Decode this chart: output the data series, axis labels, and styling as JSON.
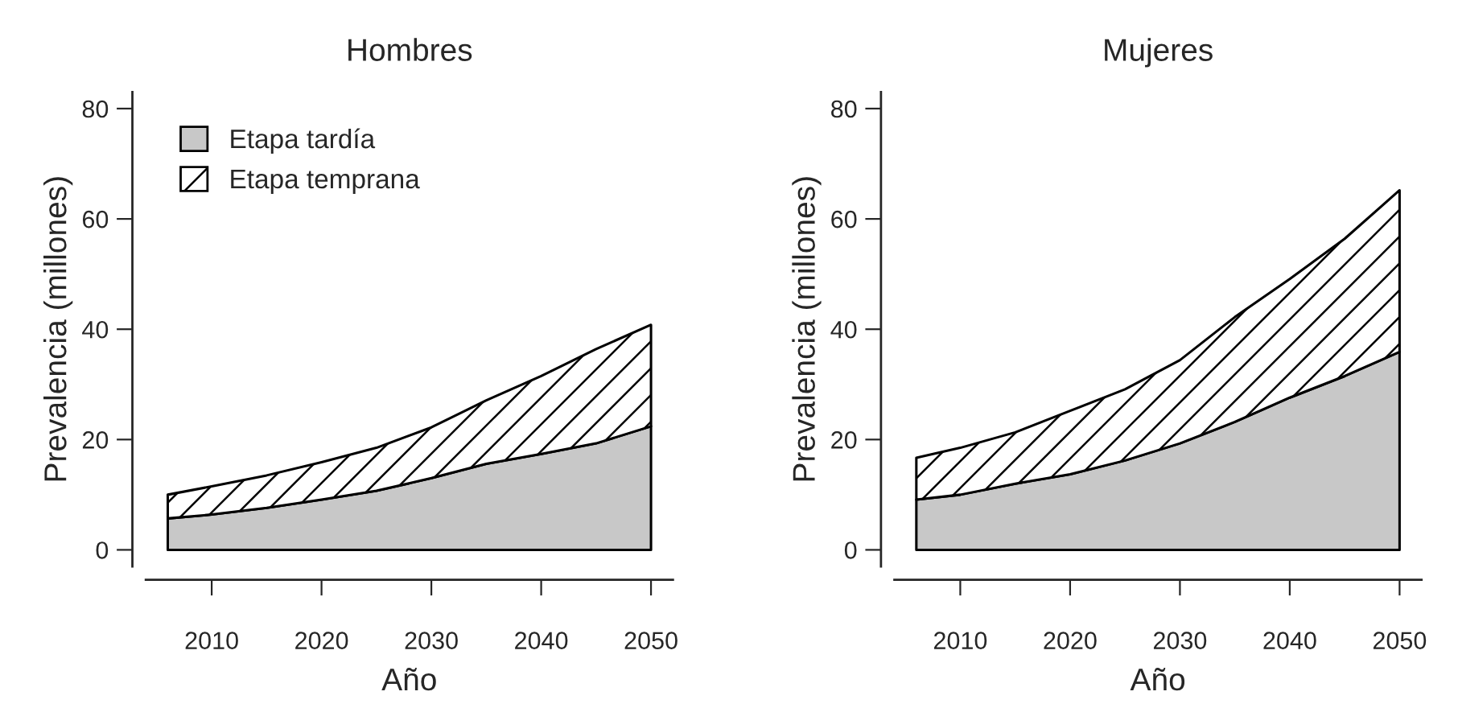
{
  "chart_data": [
    {
      "type": "area",
      "title": "Hombres",
      "xlabel": "Año",
      "ylabel": "Prevalencia (millones)",
      "stacked": true,
      "legend": "top left",
      "grid": false,
      "x": [
        2006,
        2010,
        2015,
        2020,
        2025,
        2030,
        2035,
        2040,
        2045,
        2050
      ],
      "series": [
        {
          "name": "Etapa tardía",
          "color": "#c8c8c8",
          "values": [
            5.7,
            6.4,
            7.6,
            9.1,
            10.7,
            13.0,
            15.6,
            17.4,
            19.3,
            22.4
          ]
        },
        {
          "name": "Etapa temprana",
          "color": "#000000",
          "values": [
            4.3,
            5.1,
            5.9,
            6.8,
            7.8,
            9.2,
            11.5,
            14.1,
            17.1,
            18.4
          ]
        }
      ],
      "xlim": [
        2004,
        2052
      ],
      "xticks": [
        2010,
        2020,
        2030,
        2040,
        2050
      ],
      "ylim": [
        -3,
        83
      ],
      "yticks": [
        0,
        20,
        40,
        60,
        80
      ]
    },
    {
      "type": "area",
      "title": "Mujeres",
      "xlabel": "Año",
      "ylabel": "Prevalencia (millones)",
      "stacked": true,
      "grid": false,
      "x": [
        2006,
        2010,
        2015,
        2020,
        2025,
        2030,
        2035,
        2040,
        2045,
        2050
      ],
      "series": [
        {
          "color": "#c8c8c8",
          "values": [
            9.1,
            10.0,
            12.0,
            13.7,
            16.2,
            19.3,
            23.2,
            27.6,
            31.5,
            35.9
          ]
        },
        {
          "color": "#000000",
          "values": [
            7.6,
            8.5,
            9.3,
            11.5,
            12.9,
            15.1,
            19.0,
            21.5,
            24.9,
            29.3
          ]
        }
      ],
      "xlim": [
        2004,
        2052
      ],
      "xticks": [
        2010,
        2020,
        2030,
        2040,
        2050
      ],
      "ylim": [
        -3,
        83
      ],
      "yticks": [
        0,
        20,
        40,
        60,
        80
      ]
    }
  ]
}
